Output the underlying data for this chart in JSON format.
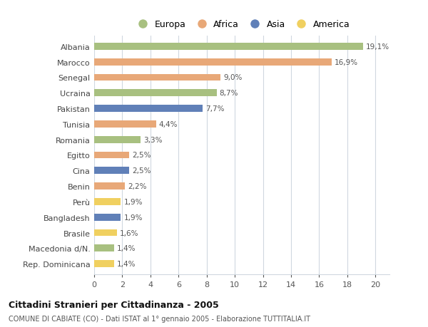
{
  "categories": [
    "Albania",
    "Marocco",
    "Senegal",
    "Ucraina",
    "Pakistan",
    "Tunisia",
    "Romania",
    "Egitto",
    "Cina",
    "Benin",
    "Perù",
    "Bangladesh",
    "Brasile",
    "Macedonia d/N.",
    "Rep. Dominicana"
  ],
  "values": [
    19.1,
    16.9,
    9.0,
    8.7,
    7.7,
    4.4,
    3.3,
    2.5,
    2.5,
    2.2,
    1.9,
    1.9,
    1.6,
    1.4,
    1.4
  ],
  "colors": [
    "#a8c080",
    "#e8a878",
    "#e8a878",
    "#a8c080",
    "#6080b8",
    "#e8a878",
    "#a8c080",
    "#e8a878",
    "#6080b8",
    "#e8a878",
    "#f0d060",
    "#6080b8",
    "#f0d060",
    "#a8c080",
    "#f0d060"
  ],
  "labels": [
    "19,1%",
    "16,9%",
    "9,0%",
    "8,7%",
    "7,7%",
    "4,4%",
    "3,3%",
    "2,5%",
    "2,5%",
    "2,2%",
    "1,9%",
    "1,9%",
    "1,6%",
    "1,4%",
    "1,4%"
  ],
  "xlim": [
    0,
    21
  ],
  "xticks": [
    0,
    2,
    4,
    6,
    8,
    10,
    12,
    14,
    16,
    18,
    20
  ],
  "legend_labels": [
    "Europa",
    "Africa",
    "Asia",
    "America"
  ],
  "legend_colors": [
    "#a8c080",
    "#e8a878",
    "#6080b8",
    "#f0d060"
  ],
  "title": "Cittadini Stranieri per Cittadinanza - 2005",
  "subtitle": "COMUNE DI CABIATE (CO) - Dati ISTAT al 1° gennaio 2005 - Elaborazione TUTTITALIA.IT",
  "background_color": "#ffffff",
  "grid_color": "#d0d8e0",
  "bar_height": 0.45
}
